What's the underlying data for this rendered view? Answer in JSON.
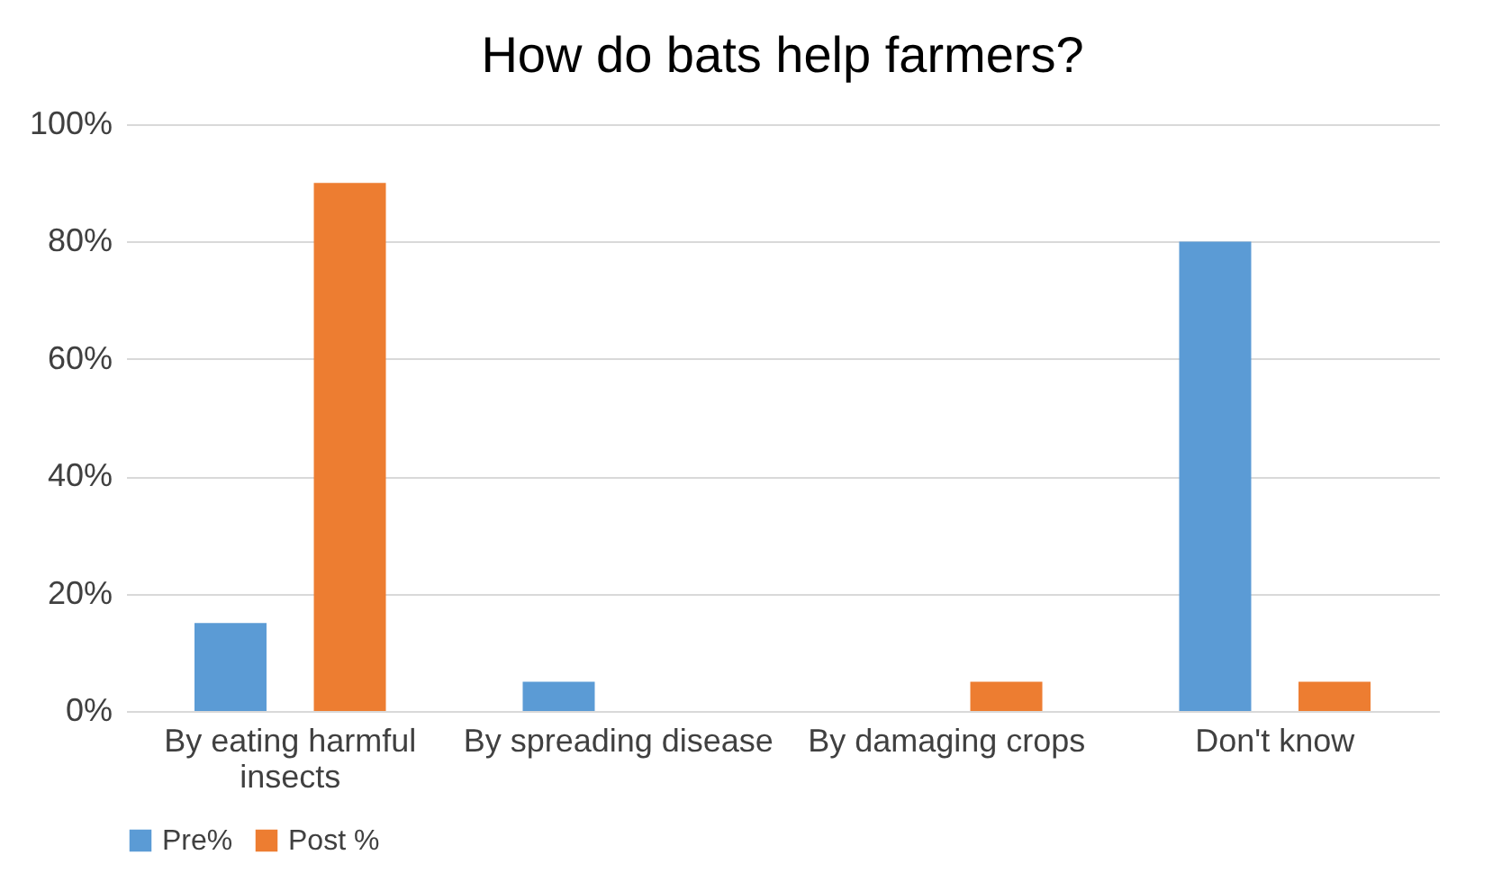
{
  "chart_data": {
    "type": "bar",
    "title": "How do bats help farmers?",
    "categories": [
      "By eating harmful insects",
      "By spreading disease",
      "By damaging crops",
      "Don't know"
    ],
    "series": [
      {
        "name": "Pre%",
        "color": "#5b9bd5",
        "values": [
          15,
          5,
          0,
          80
        ]
      },
      {
        "name": "Post %",
        "color": "#ed7d31",
        "values": [
          90,
          0,
          5,
          5
        ]
      }
    ],
    "ylim": [
      0,
      100
    ],
    "yticks": [
      {
        "value": 0,
        "label": "0%"
      },
      {
        "value": 20,
        "label": "20%"
      },
      {
        "value": 40,
        "label": "40%"
      },
      {
        "value": 60,
        "label": "60%"
      },
      {
        "value": 80,
        "label": "80%"
      },
      {
        "value": 100,
        "label": "100%"
      }
    ],
    "grid": "y",
    "legend": "bottom"
  }
}
